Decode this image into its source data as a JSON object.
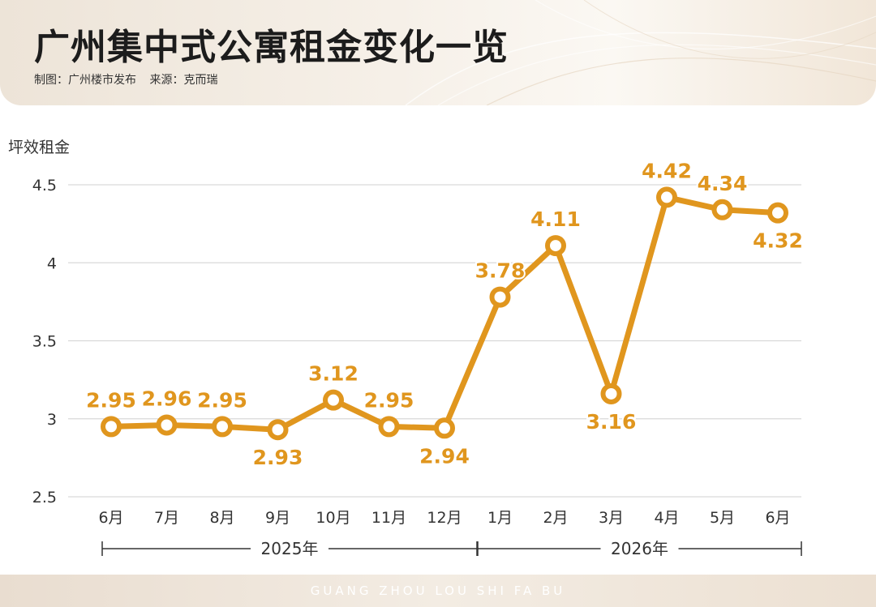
{
  "header": {
    "title": "广州集中式公寓租金变化一览",
    "maker": "制图：广州楼市发布",
    "source": "来源：克而瑞"
  },
  "footer": {
    "text": "GUANG ZHOU LOU SHI FA BU"
  },
  "colors": {
    "line": "#e0961e",
    "label": "#e0961e",
    "grid": "#d9d9d9",
    "axis_text": "#333333"
  },
  "chart_data": {
    "type": "line",
    "ylabel": "坪效租金",
    "ylim": [
      2.5,
      4.5
    ],
    "yticks": [
      "2.5",
      "3",
      "3.5",
      "4",
      "4.5"
    ],
    "grid": true,
    "categories": [
      "6月",
      "7月",
      "8月",
      "9月",
      "10月",
      "11月",
      "12月",
      "1月",
      "2月",
      "3月",
      "4月",
      "5月",
      "6月"
    ],
    "values": [
      2.95,
      2.96,
      2.95,
      2.93,
      3.12,
      2.95,
      2.94,
      3.78,
      4.11,
      3.16,
      4.42,
      4.34,
      4.32
    ],
    "value_labels": [
      "2.95",
      "2.96",
      "2.95",
      "2.93",
      "3.12",
      "2.95",
      "2.94",
      "3.78",
      "4.11",
      "3.16",
      "4.42",
      "4.34",
      "4.32"
    ],
    "label_positions": [
      "above",
      "above",
      "above",
      "below",
      "above",
      "above",
      "below",
      "above",
      "above",
      "below",
      "above",
      "above",
      "below"
    ],
    "year_groups": [
      {
        "label": "2025年",
        "from": 0,
        "to": 6
      },
      {
        "label": "2026年",
        "from": 7,
        "to": 12
      }
    ]
  }
}
